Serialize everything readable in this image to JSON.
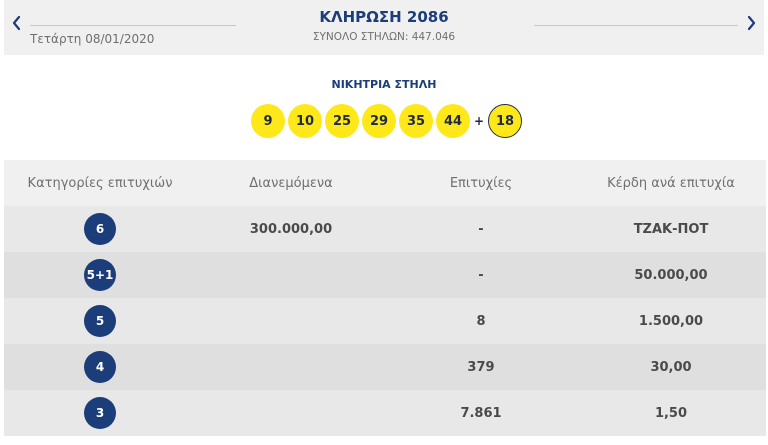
{
  "header": {
    "date": "Τετάρτη 08/01/2020",
    "title": "ΚΛΗΡΩΣΗ 2086",
    "subtitle": "ΣΥΝΟΛΟ ΣΤΗΛΩΝ: 447.046",
    "prev_icon": "chevron-left-icon",
    "next_icon": "chevron-right-icon"
  },
  "winning": {
    "label": "ΝΙΚΗΤΡΙΑ ΣΤΗΛΗ",
    "numbers": [
      "9",
      "10",
      "25",
      "29",
      "35",
      "44"
    ],
    "plus": "+",
    "joker": "18"
  },
  "table": {
    "headers": [
      "Κατηγορίες επιτυχιών",
      "Διανεμόμενα",
      "Επιτυχίες",
      "Κέρδη ανά επιτυχία"
    ],
    "rows": [
      {
        "category": "6",
        "distributed": "300.000,00",
        "winners": "-",
        "prize": "ΤΖΑΚ-ΠΟΤ"
      },
      {
        "category": "5+1",
        "distributed": "",
        "winners": "-",
        "prize": "50.000,00"
      },
      {
        "category": "5",
        "distributed": "",
        "winners": "8",
        "prize": "1.500,00"
      },
      {
        "category": "4",
        "distributed": "",
        "winners": "379",
        "prize": "30,00"
      },
      {
        "category": "3",
        "distributed": "",
        "winners": "7.861",
        "prize": "1,50"
      }
    ]
  },
  "colors": {
    "brand_blue": "#1b3d7a",
    "ball_yellow": "#ffe81a",
    "header_bg": "#f0f0f0"
  }
}
